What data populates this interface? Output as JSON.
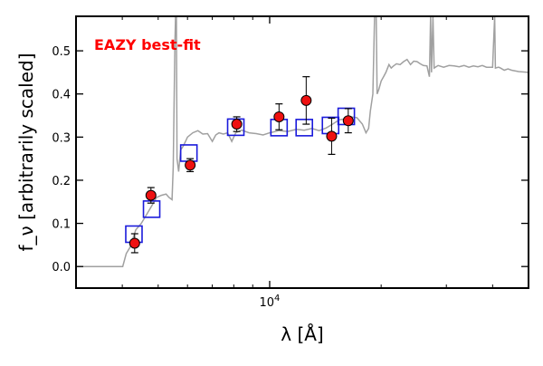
{
  "chart_data": {
    "type": "scatter",
    "annotation": "EAZY best-fit",
    "annotation_color": "#ff0000",
    "xlabel": "λ [Å]",
    "ylabel": "f_ν [arbitrarily scaled]",
    "x_scale": "log",
    "xlim": [
      3000,
      50000
    ],
    "ylim": [
      -0.05,
      0.58
    ],
    "yticks": [
      0.0,
      0.1,
      0.2,
      0.3,
      0.4,
      0.5
    ],
    "ytick_labels": [
      "0.0",
      "0.1",
      "0.2",
      "0.3",
      "0.4",
      "0.5"
    ],
    "xticks_major": [
      10000
    ],
    "xtick_major_labels": [
      "10^4"
    ],
    "xticks_minor": [
      4000,
      5000,
      6000,
      7000,
      8000,
      9000,
      20000,
      30000,
      40000
    ],
    "series": [
      {
        "marker": "square-open",
        "color": "#1a1adb",
        "points": [
          {
            "x": 4300,
            "y": 0.075
          },
          {
            "x": 4800,
            "y": 0.133
          },
          {
            "x": 6050,
            "y": 0.263
          },
          {
            "x": 8100,
            "y": 0.323
          },
          {
            "x": 10600,
            "y": 0.322
          },
          {
            "x": 12400,
            "y": 0.322
          },
          {
            "x": 14600,
            "y": 0.327
          },
          {
            "x": 16100,
            "y": 0.348
          }
        ]
      },
      {
        "marker": "circle",
        "color": "#ee1111",
        "edgecolor": "#000000",
        "points": [
          {
            "x": 4320,
            "y": 0.054,
            "err": 0.022
          },
          {
            "x": 4780,
            "y": 0.165,
            "err": 0.018
          },
          {
            "x": 6100,
            "y": 0.235,
            "err": 0.015
          },
          {
            "x": 8150,
            "y": 0.33,
            "err": 0.017
          },
          {
            "x": 10600,
            "y": 0.347,
            "err": 0.03
          },
          {
            "x": 12550,
            "y": 0.385,
            "err": 0.055
          },
          {
            "x": 14700,
            "y": 0.302,
            "err": 0.042
          },
          {
            "x": 16300,
            "y": 0.338,
            "err": 0.028
          }
        ]
      },
      {
        "marker": "line",
        "color": "#a0a0a0",
        "points": [
          [
            3000,
            0.0
          ],
          [
            4010,
            0.0
          ],
          [
            4100,
            0.03
          ],
          [
            4200,
            0.045
          ],
          [
            4350,
            0.085
          ],
          [
            4500,
            0.1
          ],
          [
            4650,
            0.12
          ],
          [
            4800,
            0.14
          ],
          [
            4950,
            0.16
          ],
          [
            5100,
            0.165
          ],
          [
            5250,
            0.168
          ],
          [
            5350,
            0.16
          ],
          [
            5450,
            0.155
          ],
          [
            5490,
            0.23
          ],
          [
            5550,
            0.52
          ],
          [
            5570,
            0.58
          ],
          [
            5600,
            0.58
          ],
          [
            5620,
            0.25
          ],
          [
            5680,
            0.22
          ],
          [
            5750,
            0.27
          ],
          [
            5850,
            0.28
          ],
          [
            6000,
            0.3
          ],
          [
            6200,
            0.31
          ],
          [
            6400,
            0.315
          ],
          [
            6600,
            0.307
          ],
          [
            6800,
            0.308
          ],
          [
            7000,
            0.29
          ],
          [
            7150,
            0.305
          ],
          [
            7300,
            0.31
          ],
          [
            7500,
            0.307
          ],
          [
            7700,
            0.31
          ],
          [
            7900,
            0.29
          ],
          [
            8100,
            0.31
          ],
          [
            8400,
            0.316
          ],
          [
            8800,
            0.31
          ],
          [
            9200,
            0.308
          ],
          [
            9600,
            0.305
          ],
          [
            10000,
            0.31
          ],
          [
            10600,
            0.315
          ],
          [
            11200,
            0.313
          ],
          [
            11800,
            0.318
          ],
          [
            12400,
            0.316
          ],
          [
            13000,
            0.32
          ],
          [
            13600,
            0.315
          ],
          [
            14200,
            0.321
          ],
          [
            14800,
            0.33
          ],
          [
            15400,
            0.34
          ],
          [
            16000,
            0.342
          ],
          [
            16600,
            0.347
          ],
          [
            17200,
            0.345
          ],
          [
            17800,
            0.33
          ],
          [
            18200,
            0.31
          ],
          [
            18500,
            0.32
          ],
          [
            18700,
            0.36
          ],
          [
            19000,
            0.4
          ],
          [
            19200,
            0.58
          ],
          [
            19400,
            0.58
          ],
          [
            19500,
            0.4
          ],
          [
            19700,
            0.41
          ],
          [
            20000,
            0.43
          ],
          [
            20300,
            0.44
          ],
          [
            20600,
            0.45
          ],
          [
            21000,
            0.468
          ],
          [
            21300,
            0.46
          ],
          [
            21600,
            0.465
          ],
          [
            22000,
            0.47
          ],
          [
            22500,
            0.468
          ],
          [
            23000,
            0.475
          ],
          [
            23500,
            0.48
          ],
          [
            24000,
            0.468
          ],
          [
            24500,
            0.476
          ],
          [
            25000,
            0.475
          ],
          [
            25500,
            0.47
          ],
          [
            26000,
            0.466
          ],
          [
            26600,
            0.465
          ],
          [
            27000,
            0.44
          ],
          [
            27200,
            0.58
          ],
          [
            27350,
            0.45
          ],
          [
            27600,
            0.58
          ],
          [
            27800,
            0.46
          ],
          [
            28500,
            0.466
          ],
          [
            29500,
            0.462
          ],
          [
            30500,
            0.466
          ],
          [
            31500,
            0.465
          ],
          [
            32500,
            0.463
          ],
          [
            33500,
            0.466
          ],
          [
            34500,
            0.462
          ],
          [
            35500,
            0.465
          ],
          [
            36500,
            0.463
          ],
          [
            37500,
            0.466
          ],
          [
            38500,
            0.462
          ],
          [
            40000,
            0.462
          ],
          [
            40500,
            0.58
          ],
          [
            40700,
            0.46
          ],
          [
            41500,
            0.462
          ],
          [
            42000,
            0.46
          ],
          [
            43000,
            0.455
          ],
          [
            44000,
            0.458
          ],
          [
            45000,
            0.455
          ],
          [
            47000,
            0.452
          ],
          [
            50000,
            0.45
          ]
        ]
      }
    ]
  }
}
